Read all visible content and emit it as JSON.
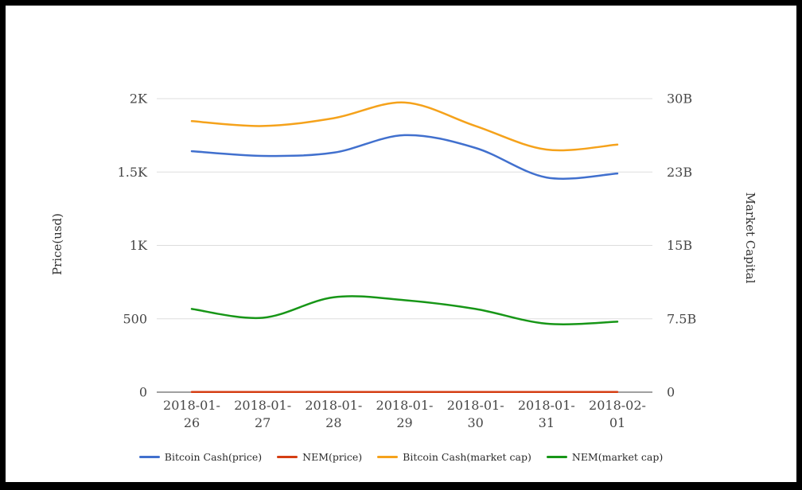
{
  "chart_data": {
    "type": "line",
    "title": "",
    "grid": true,
    "legend_position": "bottom",
    "x": [
      "2018-01-26",
      "2018-01-27",
      "2018-01-28",
      "2018-01-29",
      "2018-01-30",
      "2018-01-31",
      "2018-02-01"
    ],
    "left_axis": {
      "title": "Price(usd)",
      "ticks": [
        "0",
        "500",
        "1K",
        "1.5K",
        "2K"
      ],
      "tick_values": [
        0,
        500,
        1000,
        1500,
        2000
      ],
      "range": [
        0,
        2000
      ]
    },
    "right_axis": {
      "title": "Market Capital",
      "ticks": [
        "0",
        "7.5B",
        "15B",
        "23B",
        "30B"
      ],
      "tick_values": [
        0,
        7.5,
        15,
        22.5,
        30
      ],
      "range": [
        0,
        30
      ]
    },
    "series": [
      {
        "name": "Bitcoin Cash(price)",
        "axis": "left",
        "color": "#4170ce",
        "values": [
          1642,
          1610,
          1632,
          1751,
          1664,
          1463,
          1490
        ]
      },
      {
        "name": "NEM(price)",
        "axis": "left",
        "color": "#d53e13",
        "values": [
          1,
          1,
          1,
          1,
          1,
          1,
          1
        ]
      },
      {
        "name": "Bitcoin Cash(market cap)",
        "axis": "right",
        "color": "#f5a21b",
        "values": [
          27.7,
          27.2,
          28.0,
          29.6,
          27.2,
          24.8,
          25.3
        ]
      },
      {
        "name": "NEM(market cap)",
        "axis": "right",
        "color": "#179617",
        "values": [
          8.5,
          7.6,
          9.7,
          9.4,
          8.5,
          7.0,
          7.2
        ]
      }
    ],
    "colors": {
      "gridline": "#dddddd",
      "axis_line": "#424242",
      "tick_text": "#474747"
    }
  }
}
